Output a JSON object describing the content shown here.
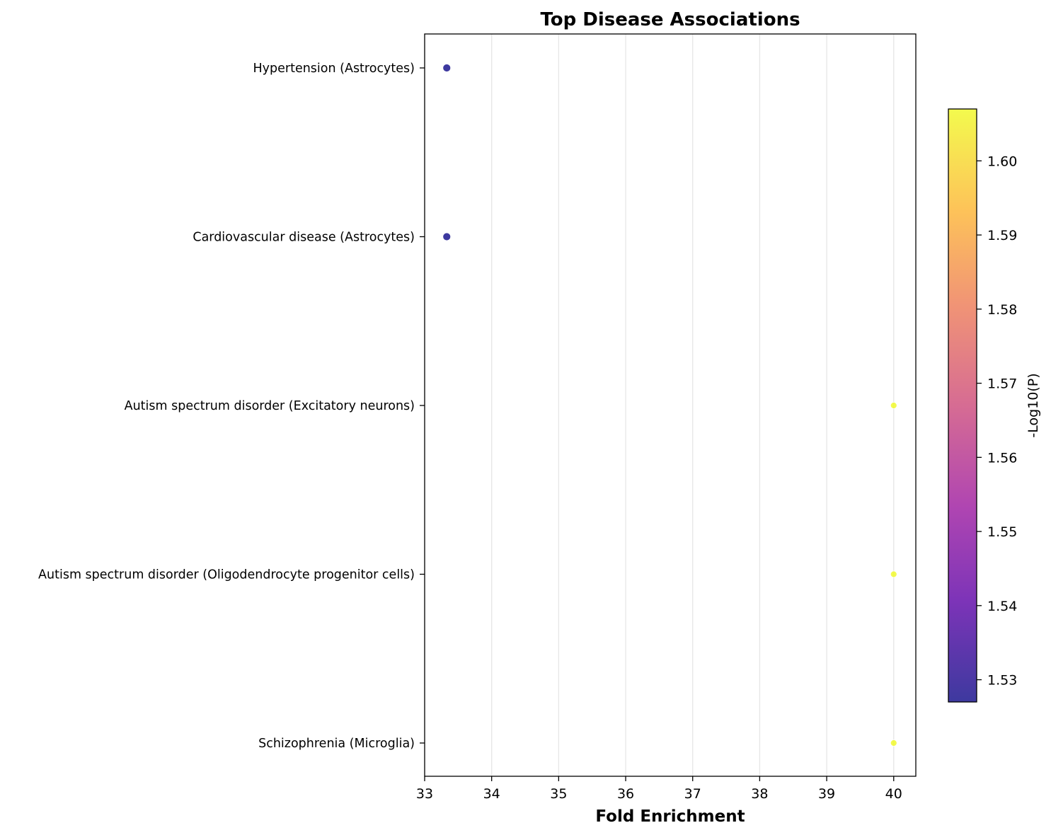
{
  "chart_data": {
    "type": "scatter",
    "title": "Top Disease Associations",
    "xlabel": "Fold Enrichment",
    "ylabel": "",
    "xlim": [
      33.0,
      40.33
    ],
    "xticks": [
      33,
      34,
      35,
      36,
      37,
      38,
      39,
      40
    ],
    "grid": "x-axis vertical lines",
    "categories": [
      "Hypertension (Astrocytes)",
      "Cardiovascular disease (Astrocytes)",
      "Autism spectrum disorder (Excitatory neurons)",
      "Autism spectrum disorder (Oligodendrocyte progenitor cells)",
      "Schizophrenia (Microglia)"
    ],
    "points": [
      {
        "category": "Hypertension (Astrocytes)",
        "fold_enrichment": 33.33,
        "neg_log10_p": 1.527
      },
      {
        "category": "Cardiovascular disease (Astrocytes)",
        "fold_enrichment": 33.33,
        "neg_log10_p": 1.527
      },
      {
        "category": "Autism spectrum disorder (Excitatory neurons)",
        "fold_enrichment": 40.0,
        "neg_log10_p": 1.607
      },
      {
        "category": "Autism spectrum disorder (Oligodendrocyte progenitor cells)",
        "fold_enrichment": 40.0,
        "neg_log10_p": 1.607
      },
      {
        "category": "Schizophrenia (Microglia)",
        "fold_enrichment": 40.0,
        "neg_log10_p": 1.607
      }
    ],
    "colorbar": {
      "label": "-Log10(P)",
      "colormap": "plasma",
      "range": [
        1.527,
        1.607
      ],
      "ticks": [
        "1.53",
        "1.54",
        "1.55",
        "1.56",
        "1.57",
        "1.58",
        "1.59",
        "1.60"
      ],
      "colors": [
        "#0d0887",
        "#5c01a6",
        "#9c179e",
        "#cc4778",
        "#ed7953",
        "#fdb42f",
        "#f0f921"
      ]
    }
  }
}
